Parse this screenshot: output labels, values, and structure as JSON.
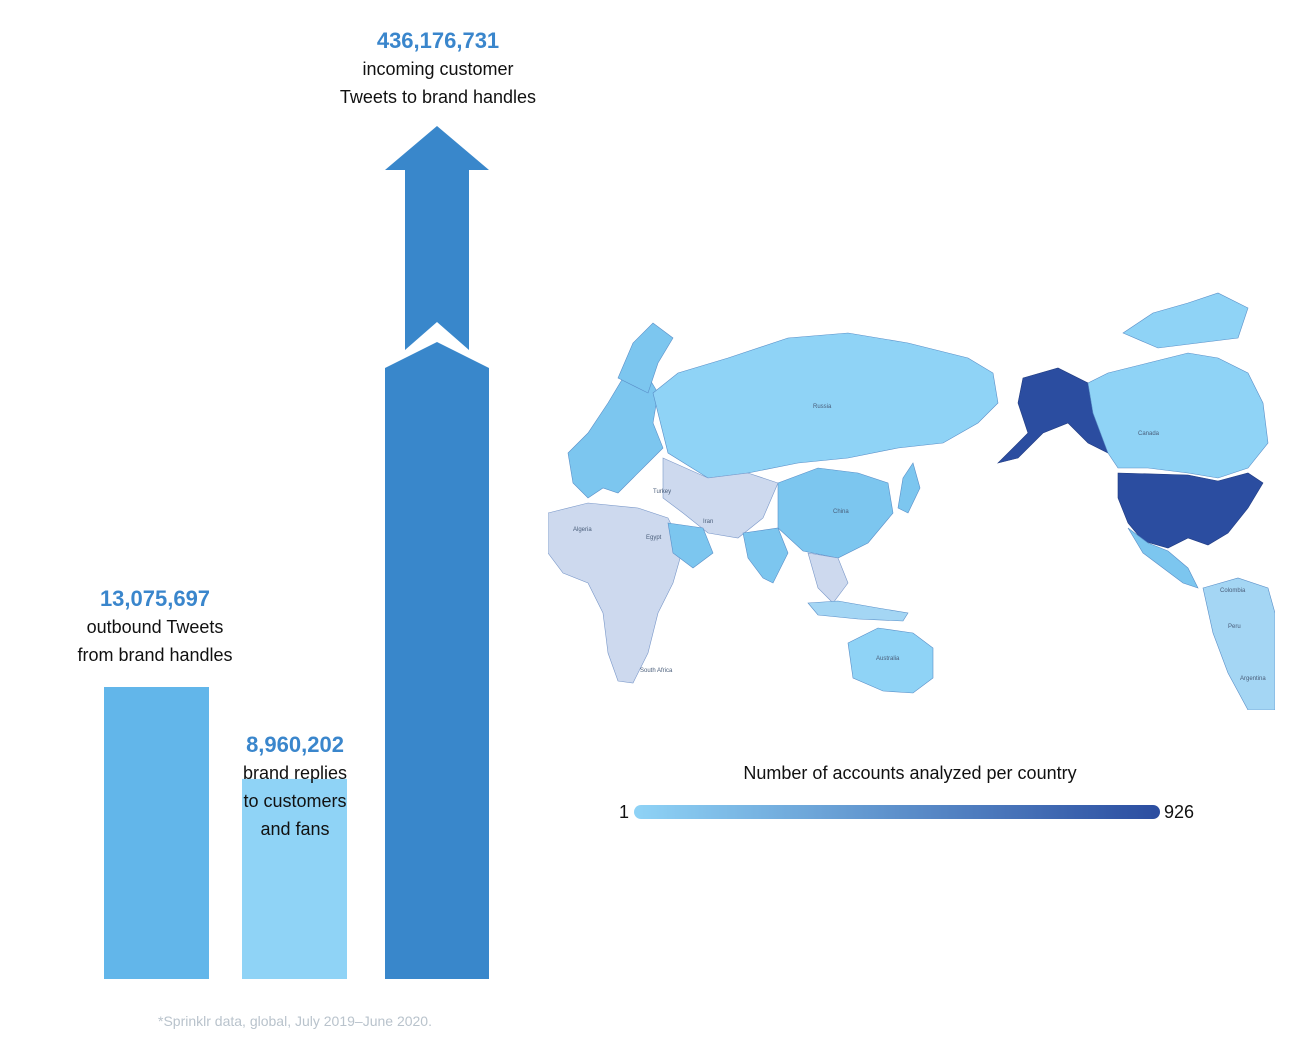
{
  "chart_data": [
    {
      "type": "bar",
      "categories": [
        "outbound Tweets from brand handles",
        "brand replies to customers and fans",
        "incoming customer Tweets to brand handles"
      ],
      "values": [
        13075697,
        8960202,
        436176731
      ],
      "labels": [
        {
          "number": "13,075,697",
          "text": "outbound Tweets\nfrom brand handles"
        },
        {
          "number": "8,960,202",
          "text": "brand replies\nto customers\nand fans"
        },
        {
          "number": "436,176,731",
          "text": "incoming customer\nTweets to brand handles"
        }
      ],
      "axis_break": "third bar truncated with break mark",
      "colors": [
        "#62b6ea",
        "#8fd3f6",
        "#3987cb"
      ]
    },
    {
      "type": "heatmap",
      "subtype": "choropleth-map",
      "title": "Number of accounts analyzed per country",
      "scale_min": "1",
      "scale_max": "926",
      "scale_colors": [
        "#8fd3f6",
        "#2b4da0"
      ],
      "highlighted_regions": [
        {
          "name": "United States",
          "level": "high"
        },
        {
          "name": "Alaska",
          "level": "high"
        },
        {
          "name": "Canada",
          "level": "medium"
        },
        {
          "name": "Russia",
          "level": "medium"
        },
        {
          "name": "China",
          "level": "medium"
        },
        {
          "name": "Australia",
          "level": "medium"
        }
      ],
      "map_labels": [
        "Algeria",
        "Egypt",
        "Turkey",
        "Iran",
        "China",
        "Russia",
        "Canada",
        "Australia",
        "South Africa",
        "Colombia",
        "Peru",
        "Argentina"
      ]
    }
  ],
  "footnote": "*Sprinklr data, global, July 2019–June 2020."
}
